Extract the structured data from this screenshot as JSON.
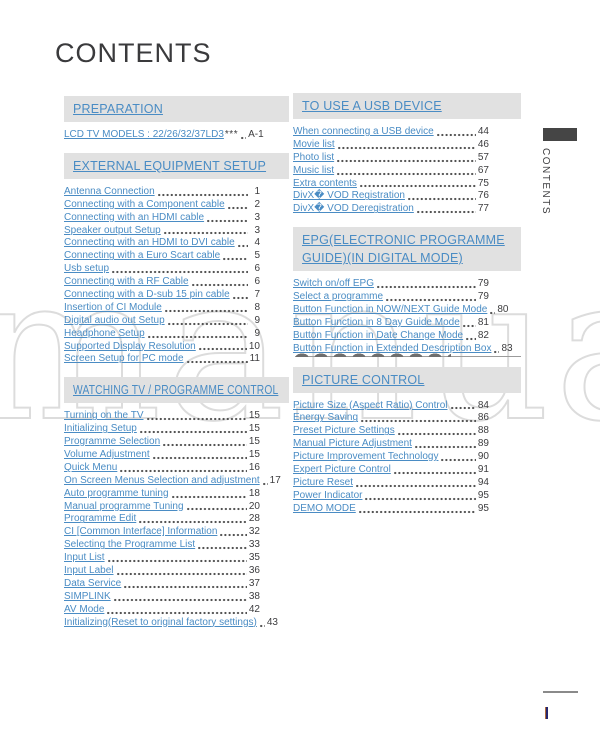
{
  "page": {
    "title": "CONTENTS",
    "side_tab_label": "CONTENTS",
    "watermark": "manuali"
  },
  "colors": {
    "link_blue": "#4a8cc4",
    "header_bar_gray": "#e1e1e1",
    "text_dark": "#3d3d3f",
    "side_tab_black": "#454545"
  },
  "columns": {
    "left": {
      "sections": [
        {
          "title": "PREPARATION",
          "entries": [
            {
              "label": "LCD TV MODELS : 22/26/32/37LD3",
              "suffix": "***",
              "page": "A-1"
            }
          ]
        },
        {
          "title": "EXTERNAL EQUIPMENT SETUP",
          "entries": [
            {
              "label": "Antenna Connection",
              "page": "1"
            },
            {
              "label": "Connecting with a Component cable",
              "page": "2"
            },
            {
              "label": "Connecting with an HDMI cable",
              "page": "3"
            },
            {
              "label": "Speaker output Setup",
              "page": "3"
            },
            {
              "label": "Connecting with an HDMI to DVI cable",
              "page": "4"
            },
            {
              "label": "Connecting with a Euro Scart cable",
              "page": "5"
            },
            {
              "label": "Usb setup",
              "page": "6"
            },
            {
              "label": "Connecting with a RF Cable",
              "page": "6"
            },
            {
              "label": "Connecting with a D-sub 15 pin cable",
              "page": "7"
            },
            {
              "label": "Insertion of CI Module",
              "page": "8"
            },
            {
              "label": "Digital audio out Setup",
              "page": "9"
            },
            {
              "label": "Headphone Setup",
              "page": "9"
            },
            {
              "label": "Supported Display Resolution",
              "page": "10"
            },
            {
              "label": "Screen Setup for PC mode",
              "page": "11"
            }
          ]
        },
        {
          "title": "WATCHING TV / PROGRAMME CONTROL",
          "entries": [
            {
              "label": "Turning on the TV",
              "page": "15"
            },
            {
              "label": "Initializing Setup",
              "page": "15"
            },
            {
              "label": "Programme Selection",
              "page": "15"
            },
            {
              "label": "Volume Adjustment",
              "page": "15"
            },
            {
              "label": "Quick Menu",
              "page": "16"
            },
            {
              "label": "On Screen Menus Selection and adjustment",
              "page": "17"
            },
            {
              "label": "Auto programme tuning",
              "page": "18"
            },
            {
              "label": "Manual programme Tuning",
              "page": "20"
            },
            {
              "label": "Programme Edit",
              "page": "28"
            },
            {
              "label": "CI [Common Interface] Information",
              "page": "32"
            },
            {
              "label": "Selecting the Programme List",
              "page": "33"
            },
            {
              "label": "Input List",
              "page": "35"
            },
            {
              "label": "Input Label",
              "page": "36"
            },
            {
              "label": "Data Service",
              "page": "37"
            },
            {
              "label": "SIMPLINK",
              "page": "38"
            },
            {
              "label": "AV Mode",
              "page": "42"
            },
            {
              "label": "Initializing(Reset to original factory settings)",
              "page": "43"
            }
          ]
        }
      ]
    },
    "right": {
      "sections": [
        {
          "title": "TO USE A USB DEVICE",
          "entries": [
            {
              "label": "When connecting a USB device",
              "page": "44"
            },
            {
              "label": "Movie list",
              "page": "46"
            },
            {
              "label": "Photo list",
              "page": "57"
            },
            {
              "label": "Music list",
              "page": "67"
            },
            {
              "label": "Extra contents",
              "page": "75"
            },
            {
              "label": "DivX� VOD Registration",
              "page": "76"
            },
            {
              "label": "DivX� VOD Deregistration",
              "page": "77"
            }
          ]
        },
        {
          "title": "EPG(ELECTRONIC PROGRAMME GUIDE)(IN DIGITAL MODE)",
          "entries": [
            {
              "label": "Switch on/off EPG",
              "page": "79"
            },
            {
              "label": "Select a programme",
              "page": "79"
            },
            {
              "label": "Button Function in NOW/NEXT Guide Mode",
              "page": "80"
            },
            {
              "label": "Button Function in 8 Day Guide Mode",
              "page": "81"
            },
            {
              "label": "Button Function in Date Change Mode",
              "page": "82"
            },
            {
              "label": "Button Function in Extended Description Box",
              "page": "83"
            }
          ]
        },
        {
          "title": "PICTURE CONTROL",
          "entries": [
            {
              "label": "Picture Size (Aspect Ratio) Control",
              "page": "84"
            },
            {
              "label": "Energy Saving",
              "page": "86"
            },
            {
              "label": "Preset Picture Settings",
              "page": "88"
            },
            {
              "label": "Manual Picture Adjustment",
              "page": "89"
            },
            {
              "label": "Picture Improvement Technology",
              "page": "90"
            },
            {
              "label": "Expert Picture Control",
              "page": "91"
            },
            {
              "label": "Picture Reset",
              "page": "94"
            },
            {
              "label": "Power Indicator",
              "page": "95"
            },
            {
              "label": "DEMO MODE",
              "page": "95"
            }
          ]
        }
      ]
    }
  }
}
